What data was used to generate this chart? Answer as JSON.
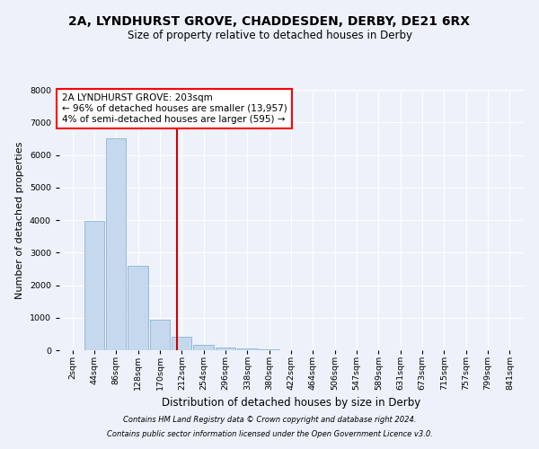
{
  "title_line1": "2A, LYNDHURST GROVE, CHADDESDEN, DERBY, DE21 6RX",
  "title_line2": "Size of property relative to detached houses in Derby",
  "xlabel": "Distribution of detached houses by size in Derby",
  "ylabel": "Number of detached properties",
  "footnote1": "Contains HM Land Registry data © Crown copyright and database right 2024.",
  "footnote2": "Contains public sector information licensed under the Open Government Licence v3.0.",
  "annotation_line1": "2A LYNDHURST GROVE: 203sqm",
  "annotation_line2": "← 96% of detached houses are smaller (13,957)",
  "annotation_line3": "4% of semi-detached houses are larger (595) →",
  "bar_color": "#c5d8ee",
  "bar_edge_color": "#7aabcf",
  "redline_color": "#cc0000",
  "categories": [
    "2sqm",
    "44sqm",
    "86sqm",
    "128sqm",
    "170sqm",
    "212sqm",
    "254sqm",
    "296sqm",
    "338sqm",
    "380sqm",
    "422sqm",
    "464sqm",
    "506sqm",
    "547sqm",
    "589sqm",
    "631sqm",
    "673sqm",
    "715sqm",
    "757sqm",
    "799sqm",
    "841sqm"
  ],
  "bar_heights": [
    10,
    3980,
    6520,
    2600,
    950,
    420,
    155,
    95,
    45,
    18,
    5,
    2,
    1,
    0,
    0,
    0,
    0,
    0,
    0,
    0,
    0
  ],
  "redline_bin": 4,
  "ylim": [
    0,
    8000
  ],
  "yticks": [
    0,
    1000,
    2000,
    3000,
    4000,
    5000,
    6000,
    7000,
    8000
  ],
  "background_color": "#edf2fa",
  "grid_color": "#ffffff",
  "title_fontsize": 10,
  "subtitle_fontsize": 8.5,
  "ylabel_fontsize": 8,
  "xlabel_fontsize": 8.5,
  "tick_fontsize": 6.8,
  "annotation_fontsize": 7.5,
  "footnote_fontsize": 6
}
